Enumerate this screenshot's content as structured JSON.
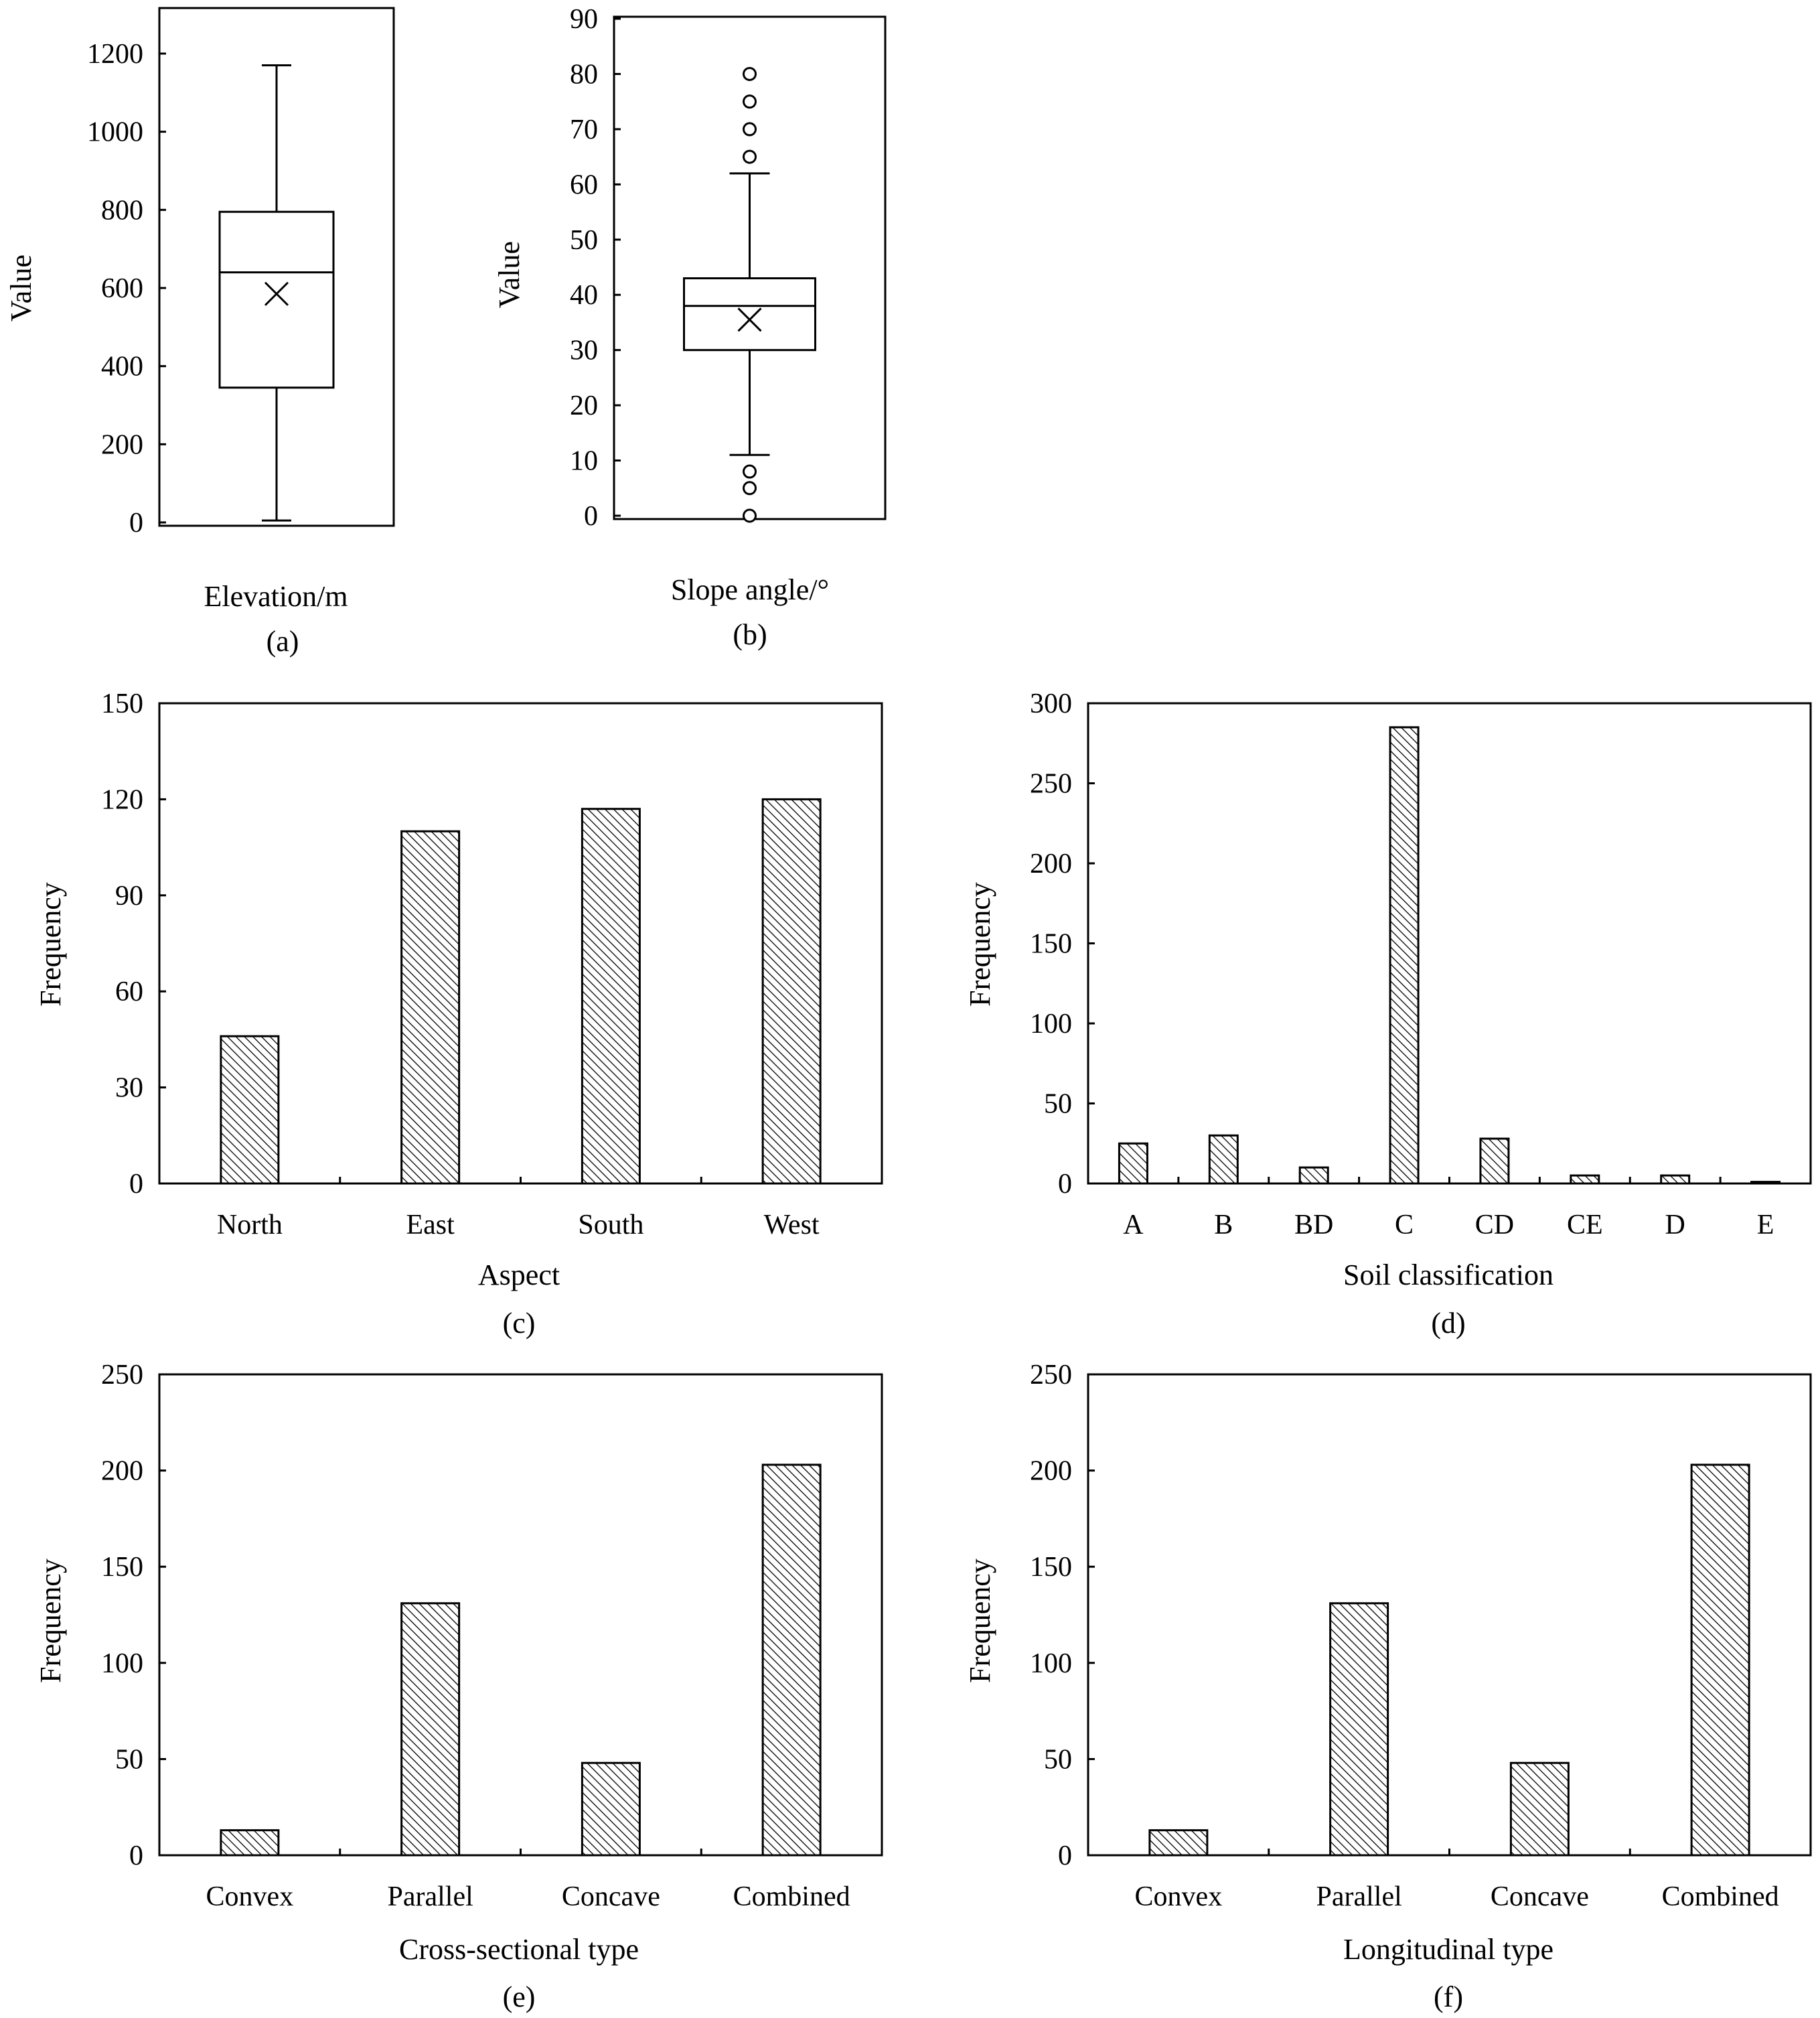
{
  "chart_data": [
    {
      "id": "a",
      "type": "box",
      "panel_label": "(a)",
      "xlabel": "Elevation/m",
      "ylabel": "Value",
      "ylim": [
        0,
        1300
      ],
      "yticks": [
        0,
        200,
        400,
        600,
        800,
        1000,
        1200
      ],
      "box": {
        "min": 5,
        "q1": 345,
        "median": 640,
        "q3": 795,
        "max": 1170,
        "mean": 585
      },
      "outliers": []
    },
    {
      "id": "b",
      "type": "box",
      "panel_label": "(b)",
      "xlabel": "Slope angle/°",
      "ylabel": "Value",
      "ylim": [
        0,
        90
      ],
      "yticks": [
        0,
        10,
        20,
        30,
        40,
        50,
        60,
        70,
        80,
        90
      ],
      "box": {
        "min": 11,
        "q1": 30,
        "median": 38,
        "q3": 43,
        "max": 62,
        "mean": 35.5
      },
      "outliers": [
        0,
        5,
        8,
        65,
        70,
        75,
        80
      ]
    },
    {
      "id": "c",
      "type": "bar",
      "panel_label": "(c)",
      "xlabel": "Aspect",
      "ylabel": "Frequency",
      "ylim": [
        0,
        150
      ],
      "yticks": [
        0,
        30,
        60,
        90,
        120,
        150
      ],
      "categories": [
        "North",
        "East",
        "South",
        "West"
      ],
      "values": [
        46,
        110,
        117,
        120
      ]
    },
    {
      "id": "d",
      "type": "bar",
      "panel_label": "(d)",
      "xlabel": "Soil classification",
      "ylabel": "Frequency",
      "ylim": [
        0,
        300
      ],
      "yticks": [
        0,
        50,
        100,
        150,
        200,
        250,
        300
      ],
      "categories": [
        "A",
        "B",
        "BD",
        "C",
        "CD",
        "CE",
        "D",
        "E"
      ],
      "values": [
        25,
        30,
        10,
        285,
        28,
        5,
        5,
        1
      ]
    },
    {
      "id": "e",
      "type": "bar",
      "panel_label": "(e)",
      "xlabel": "Cross-sectional type",
      "ylabel": "Frequency",
      "ylim": [
        0,
        250
      ],
      "yticks": [
        0,
        50,
        100,
        150,
        200,
        250
      ],
      "categories": [
        "Convex",
        "Parallel",
        "Concave",
        "Combined"
      ],
      "values": [
        13,
        131,
        48,
        203
      ]
    },
    {
      "id": "f",
      "type": "bar",
      "panel_label": "(f)",
      "xlabel": "Longitudinal type",
      "ylabel": "Frequency",
      "ylim": [
        0,
        250
      ],
      "yticks": [
        0,
        50,
        100,
        150,
        200,
        250
      ],
      "categories": [
        "Convex",
        "Parallel",
        "Concave",
        "Combined"
      ],
      "values": [
        13,
        131,
        48,
        203
      ]
    }
  ]
}
